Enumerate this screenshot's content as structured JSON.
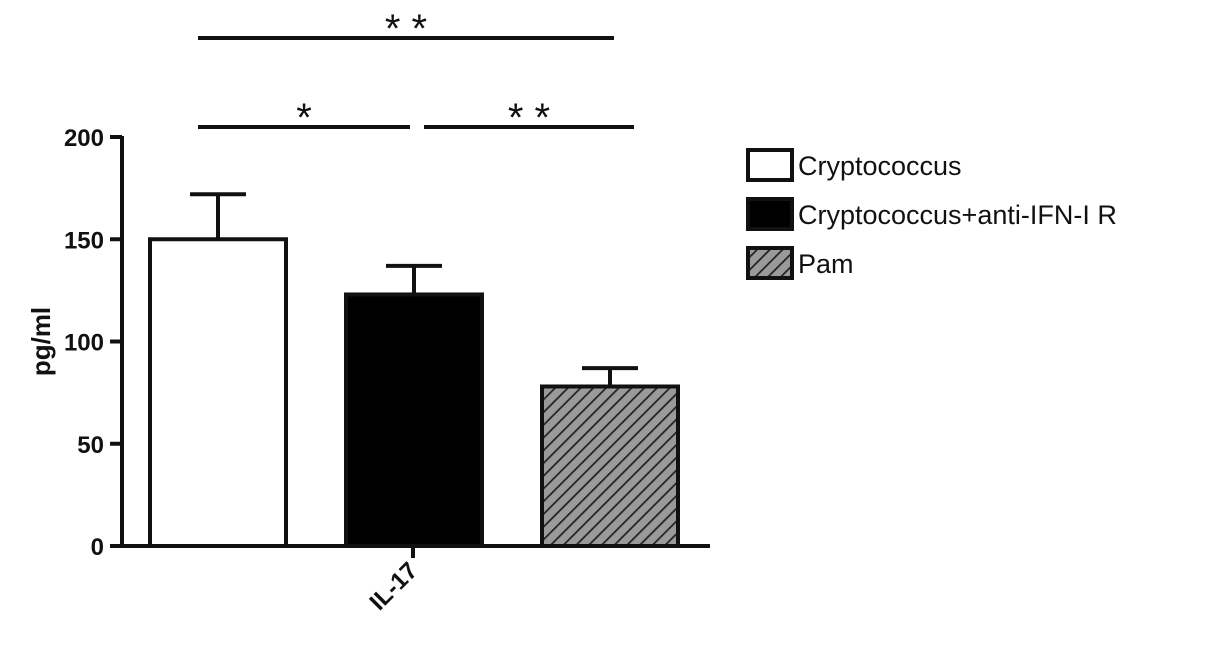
{
  "chart_data": {
    "type": "bar",
    "categories": [
      "IL-17"
    ],
    "ylabel": "pg/ml",
    "xlabel": "",
    "title": "",
    "ylim": [
      0,
      200
    ],
    "yticks": [
      "0",
      "50",
      "100",
      "150",
      "200"
    ],
    "series": [
      {
        "name": "Cryptococcus",
        "values": [
          150
        ],
        "error": [
          22
        ],
        "fill": "#ffffff",
        "pattern": "none"
      },
      {
        "name": "Cryptococcus+anti-IFN-I R",
        "values": [
          123
        ],
        "error": [
          14
        ],
        "fill": "#000000",
        "pattern": "none"
      },
      {
        "name": "Pam",
        "values": [
          78
        ],
        "error": [
          9
        ],
        "fill": "#999999",
        "pattern": "hatch"
      }
    ],
    "legend_position": "right",
    "significance": [
      {
        "from": 0,
        "to": 2,
        "label": "* *"
      },
      {
        "from": 0,
        "to": 1,
        "label": "*"
      },
      {
        "from": 1,
        "to": 2,
        "label": "* *"
      }
    ]
  }
}
